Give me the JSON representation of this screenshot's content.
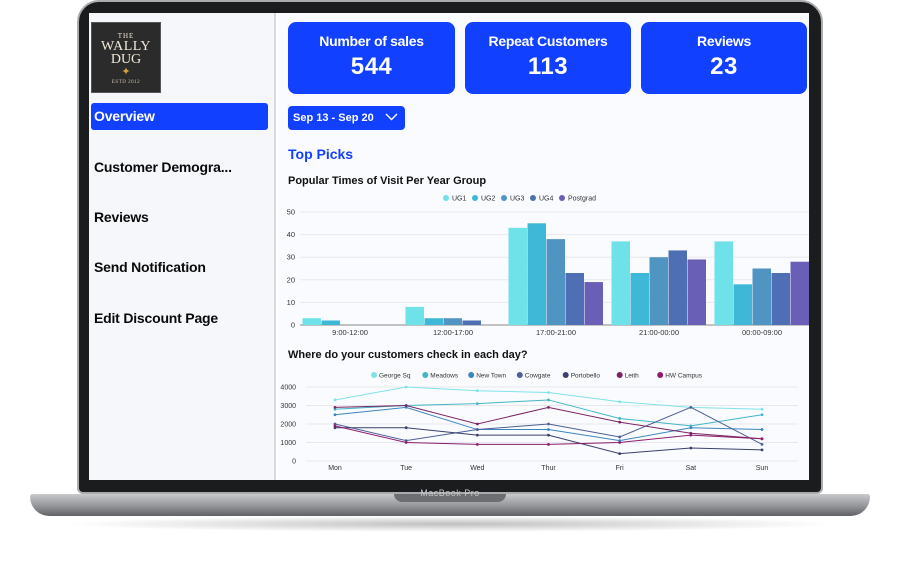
{
  "device": {
    "label": "MacBook Pro"
  },
  "logo": {
    "line1": "THE",
    "line2": "WALLY",
    "line3": "DUG",
    "line4": "ESTD 2012"
  },
  "sidebar": {
    "items": [
      {
        "label": "Overview",
        "active": true
      },
      {
        "label": "Customer Demogra..."
      },
      {
        "label": "Reviews"
      },
      {
        "label": "Send Notification"
      },
      {
        "label": "Edit Discount Page"
      }
    ]
  },
  "stats": [
    {
      "label": "Number of sales",
      "value": "544"
    },
    {
      "label": "Repeat Customers",
      "value": "113"
    },
    {
      "label": "Reviews",
      "value": "23"
    }
  ],
  "date_range": {
    "label": "Sep 13 - Sep 20"
  },
  "section_title": "Top Picks",
  "colors": {
    "accent": "#1240ff"
  },
  "chart_data": [
    {
      "type": "bar",
      "title": "Popular Times of Visit Per Year Group",
      "categories": [
        "9:00-12:00",
        "12:00-17:00",
        "17:00-21:00",
        "21:00-00:00",
        "00:00-09:00"
      ],
      "ylim": [
        0,
        50
      ],
      "yticks": [
        0,
        10,
        20,
        30,
        40,
        50
      ],
      "legend_position": "top",
      "series": [
        {
          "name": "UG1",
          "color": "#6ee2e8",
          "values": [
            3,
            8,
            43,
            37,
            37
          ]
        },
        {
          "name": "UG2",
          "color": "#3fb7d6",
          "values": [
            2,
            3,
            45,
            23,
            18
          ]
        },
        {
          "name": "UG3",
          "color": "#5094c2",
          "values": [
            0,
            3,
            38,
            30,
            25
          ]
        },
        {
          "name": "UG4",
          "color": "#4f6fb5",
          "values": [
            0,
            2,
            23,
            33,
            23
          ]
        },
        {
          "name": "Postgrad",
          "color": "#6a5fb7",
          "values": [
            0,
            0,
            19,
            29,
            28
          ]
        }
      ]
    },
    {
      "type": "line",
      "title": "Where do your customers check in each day?",
      "categories": [
        "Mon",
        "Tue",
        "Wed",
        "Thur",
        "Fri",
        "Sat",
        "Sun"
      ],
      "ylim": [
        0,
        4000
      ],
      "yticks": [
        0,
        1000,
        2000,
        3000,
        4000
      ],
      "legend_position": "top",
      "series": [
        {
          "name": "George Sq",
          "color": "#7fe3ea",
          "values": [
            3300,
            4000,
            3800,
            3700,
            3200,
            2900,
            2800
          ]
        },
        {
          "name": "Meadows",
          "color": "#43b7c8",
          "values": [
            2800,
            3000,
            3100,
            3300,
            2300,
            1900,
            2500
          ]
        },
        {
          "name": "New Town",
          "color": "#3b86c0",
          "values": [
            2500,
            2900,
            1700,
            1700,
            1100,
            1800,
            1700
          ]
        },
        {
          "name": "Cowgate",
          "color": "#4f5f97",
          "values": [
            2000,
            1100,
            1700,
            2000,
            1300,
            2900,
            900
          ]
        },
        {
          "name": "Portobello",
          "color": "#3a3f6b",
          "values": [
            1800,
            1800,
            1400,
            1400,
            400,
            700,
            600
          ]
        },
        {
          "name": "Leith",
          "color": "#7a2563",
          "values": [
            2900,
            3000,
            2000,
            2900,
            2100,
            1500,
            1200
          ]
        },
        {
          "name": "HW Campus",
          "color": "#8c1d6d",
          "values": [
            1900,
            1000,
            900,
            900,
            1000,
            1400,
            1200
          ]
        }
      ]
    }
  ]
}
